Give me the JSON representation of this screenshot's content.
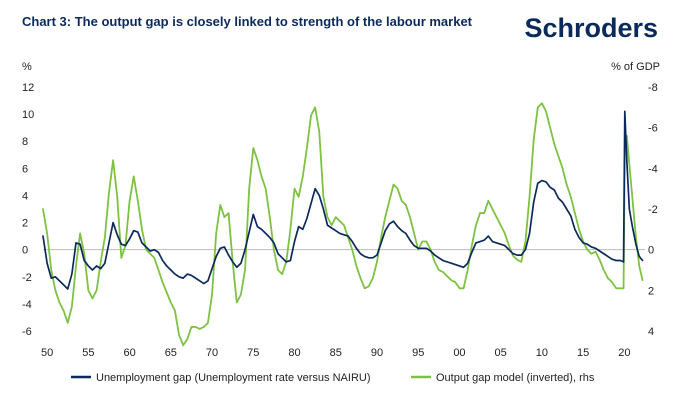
{
  "header": {
    "title": "Chart 3: The output gap is closely linked to strength of the labour market",
    "brand": "Schroders"
  },
  "chart_data": {
    "type": "line",
    "left_axis": {
      "label": "%",
      "ylim": [
        -6,
        12
      ],
      "ticks": [
        12,
        10,
        8,
        6,
        4,
        2,
        0,
        -2,
        -4,
        -6
      ]
    },
    "right_axis": {
      "label": "% of GDP",
      "ylim": [
        4,
        -8
      ],
      "inverted": true,
      "ticks": [
        -8,
        -6,
        -4,
        -2,
        0,
        2,
        4
      ]
    },
    "x_axis": {
      "xlim": [
        1949.5,
        2022.5
      ],
      "ticks": [
        1950,
        1955,
        1960,
        1965,
        1970,
        1975,
        1980,
        1985,
        1990,
        1995,
        2000,
        2005,
        2010,
        2015,
        2020
      ],
      "tick_labels": [
        "50",
        "55",
        "60",
        "65",
        "70",
        "75",
        "80",
        "85",
        "90",
        "95",
        "00",
        "05",
        "10",
        "15",
        "20"
      ]
    },
    "grid": false,
    "legend_position": "bottom",
    "series": [
      {
        "name": "Unemployment gap (Unemployment rate versus NAIRU)",
        "axis": "left",
        "color": "#0b2a5b",
        "points": [
          [
            1949.5,
            1.0
          ],
          [
            1950,
            -1.0
          ],
          [
            1950.5,
            -2.1
          ],
          [
            1951,
            -2.0
          ],
          [
            1951.5,
            -2.3
          ],
          [
            1952,
            -2.6
          ],
          [
            1952.5,
            -2.9
          ],
          [
            1953,
            -1.8
          ],
          [
            1953.5,
            0.5
          ],
          [
            1954,
            0.4
          ],
          [
            1954.5,
            -0.8
          ],
          [
            1955,
            -1.2
          ],
          [
            1955.5,
            -1.5
          ],
          [
            1956,
            -1.2
          ],
          [
            1956.5,
            -1.4
          ],
          [
            1957,
            -1.0
          ],
          [
            1957.5,
            0.5
          ],
          [
            1958,
            2.0
          ],
          [
            1958.5,
            1.1
          ],
          [
            1959,
            0.4
          ],
          [
            1959.5,
            0.3
          ],
          [
            1960,
            0.8
          ],
          [
            1960.5,
            1.4
          ],
          [
            1961,
            1.3
          ],
          [
            1961.5,
            0.5
          ],
          [
            1962,
            0.2
          ],
          [
            1962.5,
            -0.1
          ],
          [
            1963,
            0.0
          ],
          [
            1963.5,
            -0.2
          ],
          [
            1964,
            -0.8
          ],
          [
            1964.5,
            -1.2
          ],
          [
            1965,
            -1.5
          ],
          [
            1965.5,
            -1.8
          ],
          [
            1966,
            -2.0
          ],
          [
            1966.5,
            -2.1
          ],
          [
            1967,
            -1.8
          ],
          [
            1967.5,
            -1.9
          ],
          [
            1968,
            -2.1
          ],
          [
            1968.5,
            -2.3
          ],
          [
            1969,
            -2.5
          ],
          [
            1969.5,
            -2.3
          ],
          [
            1970,
            -1.4
          ],
          [
            1970.5,
            -0.5
          ],
          [
            1971,
            0.1
          ],
          [
            1971.5,
            0.2
          ],
          [
            1972,
            -0.4
          ],
          [
            1972.5,
            -0.9
          ],
          [
            1973,
            -1.3
          ],
          [
            1973.5,
            -1.0
          ],
          [
            1974,
            0.0
          ],
          [
            1974.5,
            1.3
          ],
          [
            1975,
            2.6
          ],
          [
            1975.5,
            1.7
          ],
          [
            1976,
            1.5
          ],
          [
            1976.5,
            1.2
          ],
          [
            1977,
            0.9
          ],
          [
            1977.5,
            0.5
          ],
          [
            1978,
            -0.3
          ],
          [
            1978.5,
            -0.6
          ],
          [
            1979,
            -0.9
          ],
          [
            1979.5,
            -0.8
          ],
          [
            1980,
            0.6
          ],
          [
            1980.5,
            1.7
          ],
          [
            1981,
            1.5
          ],
          [
            1981.5,
            2.3
          ],
          [
            1982,
            3.4
          ],
          [
            1982.5,
            4.5
          ],
          [
            1983,
            4.0
          ],
          [
            1983.5,
            3.0
          ],
          [
            1984,
            1.8
          ],
          [
            1984.5,
            1.6
          ],
          [
            1985,
            1.4
          ],
          [
            1985.5,
            1.2
          ],
          [
            1986,
            1.1
          ],
          [
            1986.5,
            1.0
          ],
          [
            1987,
            0.6
          ],
          [
            1987.5,
            0.1
          ],
          [
            1988,
            -0.3
          ],
          [
            1988.5,
            -0.5
          ],
          [
            1989,
            -0.6
          ],
          [
            1989.5,
            -0.6
          ],
          [
            1990,
            -0.4
          ],
          [
            1990.5,
            0.5
          ],
          [
            1991,
            1.4
          ],
          [
            1991.5,
            1.9
          ],
          [
            1992,
            2.1
          ],
          [
            1992.5,
            1.7
          ],
          [
            1993,
            1.4
          ],
          [
            1993.5,
            1.2
          ],
          [
            1994,
            0.7
          ],
          [
            1994.5,
            0.3
          ],
          [
            1995,
            0.1
          ],
          [
            1995.5,
            0.1
          ],
          [
            1996,
            0.1
          ],
          [
            1996.5,
            -0.1
          ],
          [
            1997,
            -0.4
          ],
          [
            1997.5,
            -0.6
          ],
          [
            1998,
            -0.8
          ],
          [
            1998.5,
            -0.9
          ],
          [
            1999,
            -1.0
          ],
          [
            1999.5,
            -1.1
          ],
          [
            2000,
            -1.2
          ],
          [
            2000.5,
            -1.3
          ],
          [
            2001,
            -1.0
          ],
          [
            2001.5,
            -0.2
          ],
          [
            2002,
            0.5
          ],
          [
            2002.5,
            0.6
          ],
          [
            2003,
            0.7
          ],
          [
            2003.5,
            1.0
          ],
          [
            2004,
            0.6
          ],
          [
            2004.5,
            0.5
          ],
          [
            2005,
            0.4
          ],
          [
            2005.5,
            0.3
          ],
          [
            2006,
            0.0
          ],
          [
            2006.5,
            -0.3
          ],
          [
            2007,
            -0.4
          ],
          [
            2007.5,
            -0.4
          ],
          [
            2008,
            0.0
          ],
          [
            2008.5,
            1.2
          ],
          [
            2009,
            3.5
          ],
          [
            2009.5,
            4.9
          ],
          [
            2010,
            5.1
          ],
          [
            2010.5,
            5.0
          ],
          [
            2011,
            4.6
          ],
          [
            2011.5,
            4.4
          ],
          [
            2012,
            3.8
          ],
          [
            2012.5,
            3.5
          ],
          [
            2013,
            3.0
          ],
          [
            2013.5,
            2.5
          ],
          [
            2014,
            1.5
          ],
          [
            2014.5,
            0.9
          ],
          [
            2015,
            0.5
          ],
          [
            2015.5,
            0.4
          ],
          [
            2016,
            0.2
          ],
          [
            2016.5,
            0.1
          ],
          [
            2017,
            -0.1
          ],
          [
            2017.5,
            -0.3
          ],
          [
            2018,
            -0.5
          ],
          [
            2018.5,
            -0.7
          ],
          [
            2019,
            -0.8
          ],
          [
            2019.5,
            -0.8
          ],
          [
            2019.9,
            -0.9
          ],
          [
            2020.05,
            10.2
          ],
          [
            2020.3,
            6.5
          ],
          [
            2020.6,
            3.0
          ],
          [
            2021,
            1.6
          ],
          [
            2021.4,
            0.4
          ],
          [
            2021.8,
            -0.5
          ],
          [
            2022.2,
            -0.8
          ]
        ]
      },
      {
        "name": "Output gap model (inverted), rhs",
        "axis": "right",
        "color": "#7dc242",
        "points": [
          [
            1949.5,
            -2.0
          ],
          [
            1950,
            -0.8
          ],
          [
            1950.5,
            1.0
          ],
          [
            1951,
            2.0
          ],
          [
            1951.5,
            2.6
          ],
          [
            1952,
            3.0
          ],
          [
            1952.5,
            3.6
          ],
          [
            1953,
            2.8
          ],
          [
            1953.5,
            0.8
          ],
          [
            1954,
            -0.8
          ],
          [
            1954.5,
            0.2
          ],
          [
            1955,
            2.0
          ],
          [
            1955.5,
            2.4
          ],
          [
            1956,
            2.0
          ],
          [
            1956.5,
            0.6
          ],
          [
            1957,
            -0.6
          ],
          [
            1957.5,
            -2.8
          ],
          [
            1958,
            -4.4
          ],
          [
            1958.5,
            -2.6
          ],
          [
            1959,
            0.4
          ],
          [
            1959.5,
            -0.2
          ],
          [
            1960,
            -2.4
          ],
          [
            1960.5,
            -3.6
          ],
          [
            1961,
            -2.4
          ],
          [
            1961.5,
            -1.0
          ],
          [
            1962,
            0.0
          ],
          [
            1962.5,
            0.2
          ],
          [
            1963,
            0.4
          ],
          [
            1963.5,
            1.0
          ],
          [
            1964,
            1.6
          ],
          [
            1964.5,
            2.1
          ],
          [
            1965,
            2.6
          ],
          [
            1965.5,
            3.0
          ],
          [
            1966,
            4.2
          ],
          [
            1966.5,
            4.7
          ],
          [
            1967,
            4.4
          ],
          [
            1967.5,
            3.8
          ],
          [
            1968,
            3.8
          ],
          [
            1968.5,
            3.9
          ],
          [
            1969,
            3.8
          ],
          [
            1969.5,
            3.6
          ],
          [
            1970,
            2.2
          ],
          [
            1970.5,
            -0.8
          ],
          [
            1971,
            -2.2
          ],
          [
            1971.5,
            -1.6
          ],
          [
            1972,
            -1.8
          ],
          [
            1972.5,
            0.6
          ],
          [
            1973,
            2.6
          ],
          [
            1973.5,
            2.2
          ],
          [
            1974,
            1.0
          ],
          [
            1974.5,
            -3.0
          ],
          [
            1975,
            -5.0
          ],
          [
            1975.5,
            -4.4
          ],
          [
            1976,
            -3.6
          ],
          [
            1976.5,
            -3.0
          ],
          [
            1977,
            -1.6
          ],
          [
            1977.5,
            0.0
          ],
          [
            1978,
            1.0
          ],
          [
            1978.5,
            1.2
          ],
          [
            1979,
            0.6
          ],
          [
            1979.5,
            -1.0
          ],
          [
            1980,
            -3.0
          ],
          [
            1980.5,
            -2.6
          ],
          [
            1981,
            -3.6
          ],
          [
            1981.5,
            -5.0
          ],
          [
            1982,
            -6.6
          ],
          [
            1982.5,
            -7.0
          ],
          [
            1983,
            -5.8
          ],
          [
            1983.5,
            -2.6
          ],
          [
            1984,
            -1.6
          ],
          [
            1984.5,
            -1.2
          ],
          [
            1985,
            -1.6
          ],
          [
            1985.5,
            -1.4
          ],
          [
            1986,
            -1.2
          ],
          [
            1986.5,
            -0.6
          ],
          [
            1987,
            0.0
          ],
          [
            1987.5,
            0.8
          ],
          [
            1988,
            1.4
          ],
          [
            1988.5,
            1.9
          ],
          [
            1989,
            1.8
          ],
          [
            1989.5,
            1.4
          ],
          [
            1990,
            0.6
          ],
          [
            1990.5,
            -0.6
          ],
          [
            1991,
            -1.6
          ],
          [
            1991.5,
            -2.4
          ],
          [
            1992,
            -3.2
          ],
          [
            1992.5,
            -3.0
          ],
          [
            1993,
            -2.4
          ],
          [
            1993.5,
            -2.2
          ],
          [
            1994,
            -1.6
          ],
          [
            1994.5,
            -0.8
          ],
          [
            1995,
            0.0
          ],
          [
            1995.5,
            -0.4
          ],
          [
            1996,
            -0.4
          ],
          [
            1996.5,
            0.0
          ],
          [
            1997,
            0.6
          ],
          [
            1997.5,
            1.0
          ],
          [
            1998,
            1.1
          ],
          [
            1998.5,
            1.3
          ],
          [
            1999,
            1.5
          ],
          [
            1999.5,
            1.6
          ],
          [
            2000,
            1.9
          ],
          [
            2000.5,
            1.9
          ],
          [
            2001,
            1.0
          ],
          [
            2001.5,
            -0.2
          ],
          [
            2002,
            -1.2
          ],
          [
            2002.5,
            -1.8
          ],
          [
            2003,
            -1.8
          ],
          [
            2003.5,
            -2.4
          ],
          [
            2004,
            -2.0
          ],
          [
            2004.5,
            -1.6
          ],
          [
            2005,
            -1.2
          ],
          [
            2005.5,
            -0.8
          ],
          [
            2006,
            -0.2
          ],
          [
            2006.5,
            0.3
          ],
          [
            2007,
            0.5
          ],
          [
            2007.5,
            0.6
          ],
          [
            2008,
            -0.4
          ],
          [
            2008.5,
            -2.6
          ],
          [
            2009,
            -5.4
          ],
          [
            2009.5,
            -7.0
          ],
          [
            2010,
            -7.2
          ],
          [
            2010.5,
            -6.8
          ],
          [
            2011,
            -6.0
          ],
          [
            2011.5,
            -5.2
          ],
          [
            2012,
            -4.6
          ],
          [
            2012.5,
            -4.0
          ],
          [
            2013,
            -3.2
          ],
          [
            2013.5,
            -2.6
          ],
          [
            2014,
            -1.8
          ],
          [
            2014.5,
            -1.0
          ],
          [
            2015,
            -0.4
          ],
          [
            2015.5,
            0.0
          ],
          [
            2016,
            0.2
          ],
          [
            2016.5,
            0.1
          ],
          [
            2017,
            0.5
          ],
          [
            2017.5,
            1.0
          ],
          [
            2018,
            1.4
          ],
          [
            2018.5,
            1.6
          ],
          [
            2019,
            1.9
          ],
          [
            2019.5,
            1.9
          ],
          [
            2019.9,
            1.9
          ],
          [
            2020.05,
            -4.6
          ],
          [
            2020.3,
            -5.6
          ],
          [
            2020.6,
            -4.2
          ],
          [
            2021,
            -2.4
          ],
          [
            2021.4,
            -0.6
          ],
          [
            2021.8,
            0.8
          ],
          [
            2022.2,
            1.5
          ]
        ]
      }
    ]
  }
}
